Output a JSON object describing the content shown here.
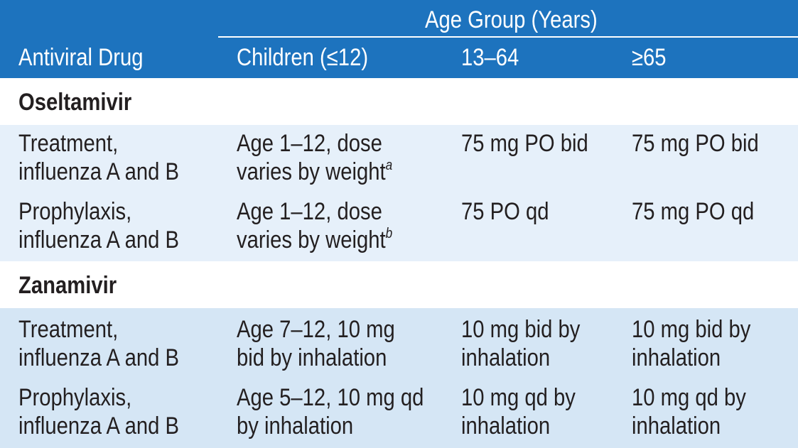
{
  "header": {
    "group_label": "Age Group (Years)",
    "col_drug": "Antiviral Drug",
    "col_children": "Children (≤12)",
    "col_adult": "13–64",
    "col_senior": "≥65"
  },
  "sections": [
    {
      "title": "Oseltamivir",
      "rows": [
        {
          "use": [
            "Treatment,",
            "influenza A and B"
          ],
          "children": [
            "Age 1–12, dose",
            "varies by weight"
          ],
          "children_footnote": "a",
          "adult": [
            "75 mg PO bid"
          ],
          "senior": [
            "75 mg PO bid"
          ]
        },
        {
          "use": [
            "Prophylaxis,",
            "influenza A and B"
          ],
          "children": [
            "Age 1–12, dose",
            "varies by weight"
          ],
          "children_footnote": "b",
          "adult": [
            "75 PO qd"
          ],
          "senior": [
            "75 mg PO qd"
          ]
        }
      ]
    },
    {
      "title": "Zanamivir",
      "rows": [
        {
          "use": [
            "Treatment,",
            "influenza A and B"
          ],
          "children": [
            "Age 7–12, 10 mg",
            "bid by inhalation"
          ],
          "adult": [
            "10 mg bid by",
            "inhalation"
          ],
          "senior": [
            "10 mg bid by",
            "inhalation"
          ]
        },
        {
          "use": [
            "Prophylaxis,",
            "influenza A and B"
          ],
          "children": [
            "Age 5–12, 10 mg qd",
            "by inhalation"
          ],
          "adult": [
            "10 mg qd by",
            "inhalation"
          ],
          "senior": [
            "10 mg qd by",
            "inhalation"
          ]
        }
      ]
    }
  ],
  "colors": {
    "header_bg": "#1d73be",
    "band_light": "#e6f0fa",
    "band_mid": "#d5e6f5",
    "text": "#231f20"
  }
}
